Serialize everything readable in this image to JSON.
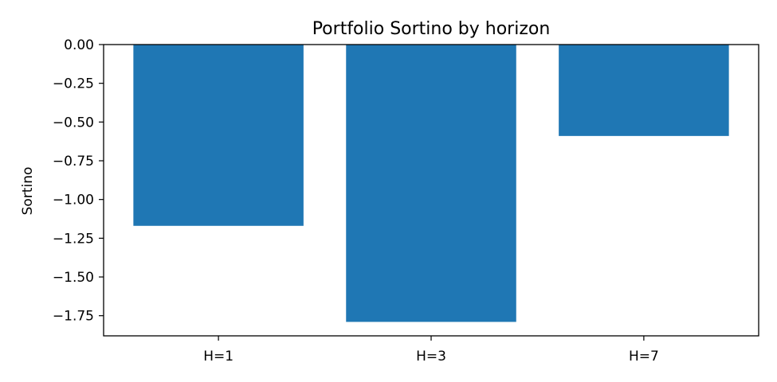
{
  "chart_data": {
    "type": "bar",
    "title": "Portfolio Sortino by horizon",
    "xlabel": "",
    "ylabel": "Sortino",
    "categories": [
      "H=1",
      "H=3",
      "H=7"
    ],
    "values": [
      -1.17,
      -1.79,
      -0.59
    ],
    "ylim": [
      -1.88,
      0.0
    ],
    "yticks": [
      0.0,
      -0.25,
      -0.5,
      -0.75,
      -1.0,
      -1.25,
      -1.5,
      -1.75
    ],
    "ytick_labels": [
      "0.00",
      "−0.25",
      "−0.50",
      "−0.75",
      "−1.00",
      "−1.25",
      "−1.50",
      "−1.75"
    ],
    "bar_color": "#1f77b4",
    "grid": false,
    "legend": "none"
  }
}
